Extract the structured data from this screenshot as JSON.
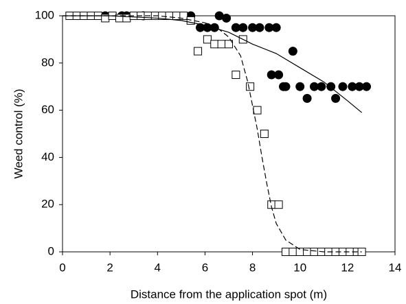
{
  "chart_data": {
    "type": "scatter",
    "x_label": "Distance from the application spot (m)",
    "y_label": "Weed control (%)",
    "xlim": [
      0,
      14
    ],
    "xticks": [
      0,
      2,
      4,
      6,
      8,
      10,
      12,
      14
    ],
    "ylim": [
      0,
      100
    ],
    "yticks": [
      0,
      20,
      40,
      60,
      80,
      100
    ],
    "series": [
      {
        "marker": "circle",
        "color": "#000000",
        "x": [
          1.8,
          2.5,
          2.7,
          3.4,
          5.4,
          5.8,
          6.1,
          6.4,
          6.6,
          6.9,
          7.3,
          7.6,
          8.0,
          8.3,
          8.7,
          9.0,
          9.3,
          8.8,
          9.1,
          9.7,
          9.4,
          10.0,
          10.3,
          10.6,
          10.9,
          11.3,
          11.5,
          11.8,
          12.2,
          12.5,
          12.8
        ],
        "values": [
          100,
          100,
          100,
          100,
          100,
          95,
          95,
          95,
          100,
          99,
          95,
          95,
          95,
          95,
          95,
          95,
          70,
          75,
          75,
          85,
          70,
          70,
          65,
          70,
          70,
          70,
          65,
          70,
          70,
          70,
          70
        ]
      },
      {
        "marker": "square",
        "color": "#000000",
        "x": [
          0.3,
          0.6,
          0.9,
          1.2,
          1.5,
          1.8,
          2.1,
          2.4,
          2.7,
          3.0,
          3.3,
          3.6,
          3.9,
          4.2,
          4.5,
          4.8,
          5.1,
          5.4,
          5.7,
          6.1,
          6.4,
          6.7,
          7.0,
          7.3,
          7.6,
          7.9,
          8.2,
          8.5,
          8.8,
          9.1,
          9.4,
          9.7,
          10.0,
          10.3,
          10.6,
          10.9,
          11.2,
          11.5,
          11.8,
          12.1,
          12.4,
          12.6
        ],
        "values": [
          100,
          100,
          100,
          100,
          100,
          99,
          100,
          99,
          99,
          100,
          100,
          100,
          100,
          100,
          100,
          100,
          100,
          98,
          85,
          90,
          88,
          88,
          88,
          75,
          90,
          70,
          60,
          50,
          20,
          20,
          0,
          0,
          0,
          0,
          0,
          0,
          0,
          0,
          0,
          0,
          0,
          0
        ]
      },
      {
        "marker": "line",
        "dash": "solid",
        "color": "#000000",
        "x": [
          0,
          2,
          4,
          5,
          6,
          7,
          8,
          9,
          10,
          11,
          12,
          12.6
        ],
        "values": [
          100,
          100,
          99,
          98,
          96,
          93,
          88,
          84,
          78,
          72,
          64,
          59
        ]
      },
      {
        "marker": "line",
        "dash": "dashed",
        "color": "#000000",
        "x": [
          0,
          4,
          5,
          6,
          6.5,
          7,
          7.5,
          7.8,
          8,
          8.2,
          8.4,
          8.6,
          8.8,
          9,
          9.4,
          10,
          11,
          12.6
        ],
        "values": [
          100,
          100,
          99,
          97,
          95,
          91,
          83,
          72,
          62,
          52,
          40,
          29,
          19,
          12,
          5,
          1,
          0,
          0
        ]
      }
    ]
  }
}
